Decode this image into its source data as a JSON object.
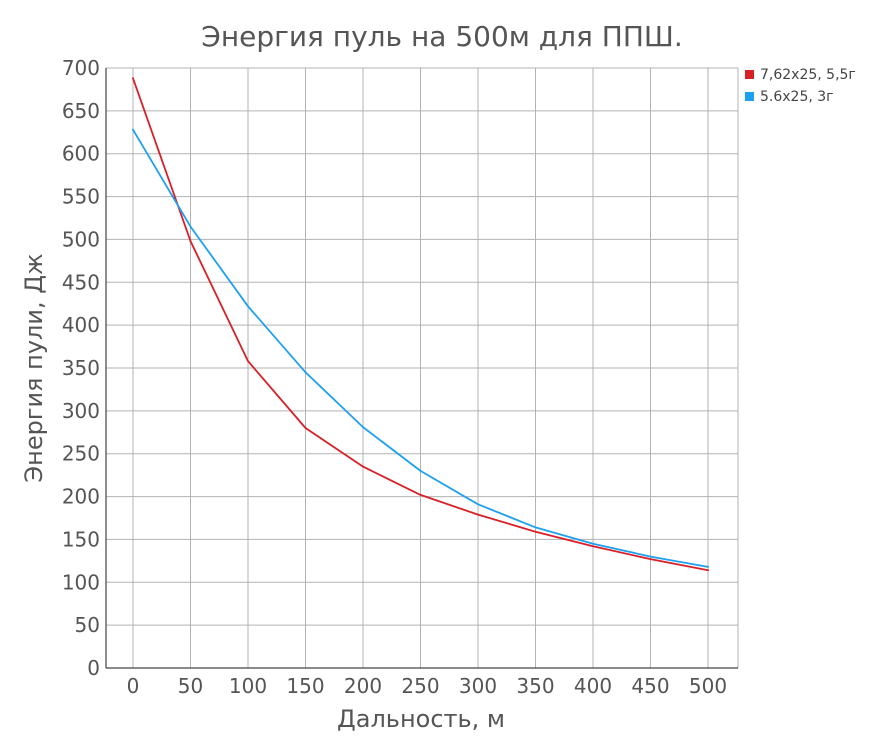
{
  "chart_data": {
    "type": "line",
    "title": "Энергия пуль на 500м для ППШ.",
    "xlabel": "Дальность, м",
    "ylabel": "Энергия пули, Дж",
    "x": [
      0,
      50,
      100,
      150,
      200,
      250,
      300,
      350,
      400,
      450,
      500
    ],
    "xlim": [
      0,
      500
    ],
    "ylim": [
      0,
      700
    ],
    "x_ticks": [
      "0",
      "50",
      "100",
      "150",
      "200",
      "250",
      "300",
      "350",
      "400",
      "450",
      "500"
    ],
    "y_ticks": [
      "0",
      "50",
      "100",
      "150",
      "200",
      "250",
      "300",
      "350",
      "400",
      "450",
      "500",
      "550",
      "600",
      "650",
      "700"
    ],
    "grid": true,
    "legend_position": "top-right",
    "series": [
      {
        "name": "7,62x25, 5,5г",
        "color": "#d92027",
        "values": [
          688,
          498,
          358,
          280,
          235,
          202,
          179,
          159,
          142,
          127,
          114
        ]
      },
      {
        "name": "5.6x25, 3г",
        "color": "#1ea0f0",
        "values": [
          628,
          515,
          422,
          345,
          281,
          230,
          191,
          164,
          145,
          130,
          118
        ]
      }
    ]
  }
}
